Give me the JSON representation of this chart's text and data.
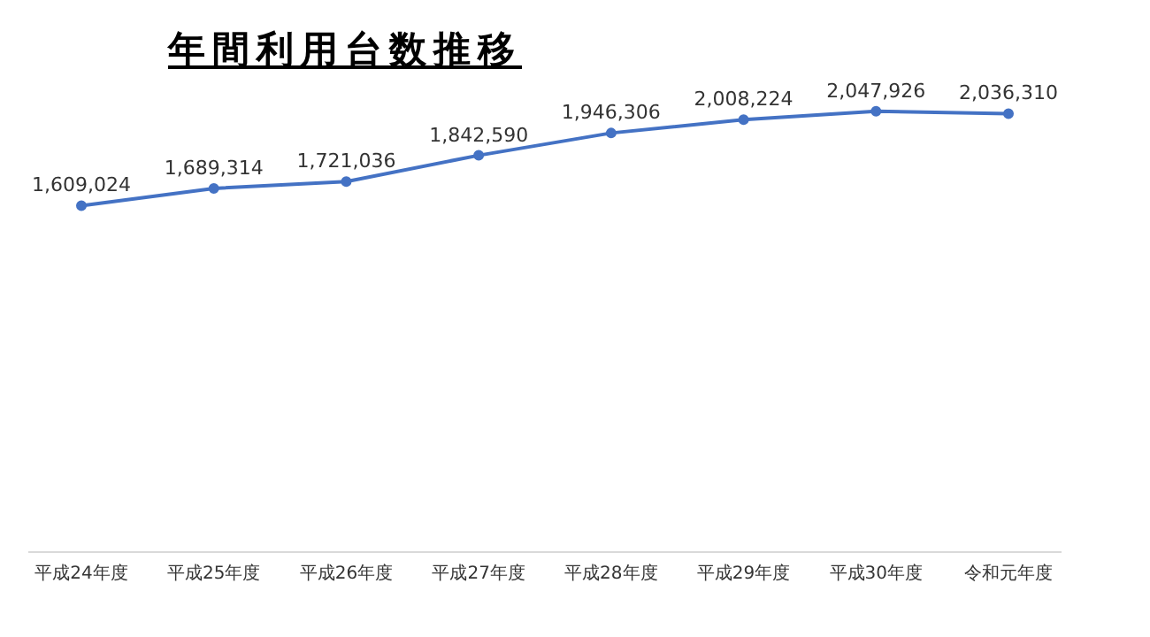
{
  "chart_data": {
    "type": "line",
    "title": "年間利用台数推移",
    "categories": [
      "平成24年度",
      "平成25年度",
      "平成26年度",
      "平成27年度",
      "平成28年度",
      "平成29年度",
      "平成30年度",
      "令和元年度"
    ],
    "series": [
      {
        "color": "#4472c4",
        "values": [
          1609024,
          1689314,
          1721036,
          1842590,
          1946306,
          2008224,
          2047926,
          2036310
        ],
        "value_labels": [
          "1,609,024",
          "1,689,314",
          "1,721,036",
          "1,842,590",
          "1,946,306",
          "2,008,224",
          "2,047,926",
          "2,036,310"
        ]
      }
    ],
    "tick_labels": "x",
    "marker": "circle",
    "legend": false
  }
}
